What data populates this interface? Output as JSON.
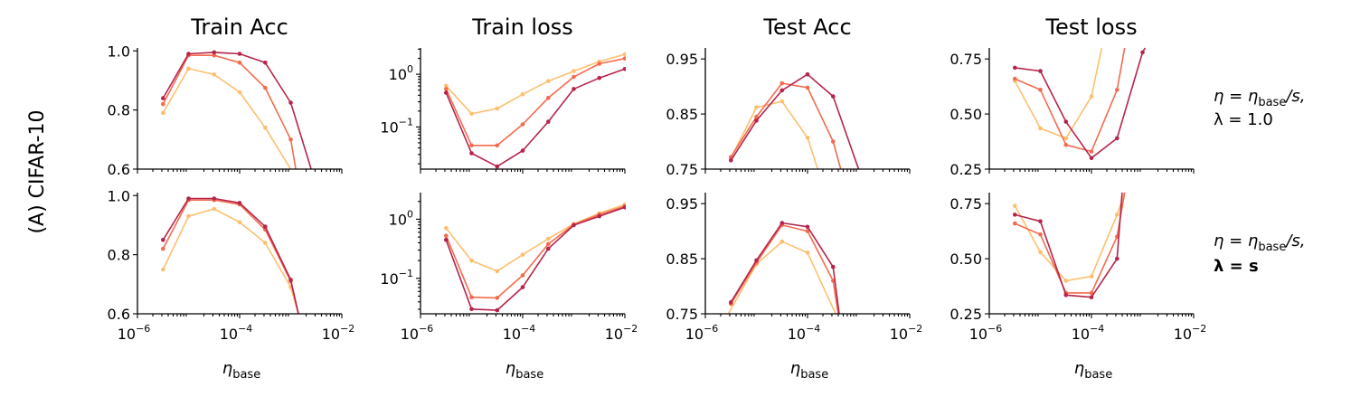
{
  "figure": {
    "row_label": "(A) CIFAR-10",
    "x_label": "η",
    "x_label_sub": "base",
    "row_annotations": [
      {
        "line1_a": "η = η",
        "line1_sub": "base",
        "line1_b": "/s,",
        "line2": "λ = 1.0",
        "line2_bold": false
      },
      {
        "line1_a": "η = η",
        "line1_sub": "base",
        "line1_b": "/s,",
        "line2": "λ = s",
        "line2_bold": true
      }
    ],
    "x_ticks": [
      {
        "base": "10",
        "exp": "−6",
        "value": -6
      },
      {
        "base": "10",
        "exp": "−4",
        "value": -4
      },
      {
        "base": "10",
        "exp": "−2",
        "value": -2
      }
    ]
  },
  "chart_data": [
    {
      "type": "line",
      "title": "Train Acc",
      "row": 0,
      "col": 0,
      "xscale": "log",
      "xlim_log10": [
        -6,
        -2
      ],
      "yscale": "linear",
      "ylim": [
        0.6,
        1.01
      ],
      "y_ticks": [
        {
          "value": 0.6,
          "label": "0.6"
        },
        {
          "value": 0.8,
          "label": "0.8"
        },
        {
          "value": 1.0,
          "label": "1.0"
        }
      ],
      "series": [
        {
          "name": "series-light",
          "color": "#fdbf6f",
          "points": [
            [
              -5.5,
              0.79
            ],
            [
              -5.0,
              0.94
            ],
            [
              -4.5,
              0.92
            ],
            [
              -4.0,
              0.86
            ],
            [
              -3.5,
              0.74
            ],
            [
              -3.0,
              0.6
            ]
          ]
        },
        {
          "name": "series-medium",
          "color": "#f26b4f",
          "points": [
            [
              -5.5,
              0.82
            ],
            [
              -5.0,
              0.985
            ],
            [
              -4.5,
              0.985
            ],
            [
              -4.0,
              0.96
            ],
            [
              -3.5,
              0.875
            ],
            [
              -3.0,
              0.7
            ],
            [
              -2.9,
              0.6
            ]
          ]
        },
        {
          "name": "series-dark",
          "color": "#b5244a",
          "points": [
            [
              -5.5,
              0.84
            ],
            [
              -5.0,
              0.99
            ],
            [
              -4.5,
              0.995
            ],
            [
              -4.0,
              0.99
            ],
            [
              -3.5,
              0.96
            ],
            [
              -3.0,
              0.825
            ],
            [
              -2.6,
              0.6
            ]
          ]
        }
      ]
    },
    {
      "type": "line",
      "title": "Train loss",
      "row": 0,
      "col": 1,
      "xscale": "log",
      "xlim_log10": [
        -6,
        -2
      ],
      "yscale": "log",
      "ylim_log10": [
        -1.8,
        0.5
      ],
      "y_ticks": [
        {
          "value": 0,
          "base": "10",
          "exp": "0"
        },
        {
          "value": -1,
          "base": "10",
          "exp": "−1"
        }
      ],
      "series": [
        {
          "name": "series-light",
          "color": "#fdbf6f",
          "points": [
            [
              -5.5,
              -0.22
            ],
            [
              -5.0,
              -0.75
            ],
            [
              -4.5,
              -0.65
            ],
            [
              -4.0,
              -0.38
            ],
            [
              -3.5,
              -0.13
            ],
            [
              -3.0,
              0.06
            ],
            [
              -2.5,
              0.24
            ],
            [
              -2.0,
              0.38
            ]
          ]
        },
        {
          "name": "series-medium",
          "color": "#f26b4f",
          "points": [
            [
              -5.5,
              -0.28
            ],
            [
              -5.0,
              -1.35
            ],
            [
              -4.5,
              -1.35
            ],
            [
              -4.0,
              -0.95
            ],
            [
              -3.5,
              -0.45
            ],
            [
              -3.0,
              -0.05
            ],
            [
              -2.5,
              0.2
            ],
            [
              -2.0,
              0.3
            ]
          ]
        },
        {
          "name": "series-dark",
          "color": "#b5244a",
          "points": [
            [
              -5.5,
              -0.35
            ],
            [
              -5.0,
              -1.5
            ],
            [
              -4.5,
              -1.75
            ],
            [
              -4.0,
              -1.45
            ],
            [
              -3.5,
              -0.9
            ],
            [
              -3.0,
              -0.28
            ],
            [
              -2.5,
              -0.07
            ],
            [
              -2.0,
              0.1
            ]
          ]
        }
      ]
    },
    {
      "type": "line",
      "title": "Test Acc",
      "row": 0,
      "col": 2,
      "xscale": "log",
      "xlim_log10": [
        -6,
        -2
      ],
      "yscale": "linear",
      "ylim": [
        0.75,
        0.97
      ],
      "y_ticks": [
        {
          "value": 0.75,
          "label": "0.75"
        },
        {
          "value": 0.85,
          "label": "0.85"
        },
        {
          "value": 0.95,
          "label": "0.95"
        }
      ],
      "series": [
        {
          "name": "series-light",
          "color": "#fdbf6f",
          "points": [
            [
              -5.5,
              0.77
            ],
            [
              -5.0,
              0.862
            ],
            [
              -4.5,
              0.873
            ],
            [
              -4.0,
              0.807
            ],
            [
              -3.8,
              0.75
            ]
          ]
        },
        {
          "name": "series-medium",
          "color": "#f26b4f",
          "points": [
            [
              -5.5,
              0.772
            ],
            [
              -5.0,
              0.845
            ],
            [
              -4.5,
              0.906
            ],
            [
              -4.0,
              0.898
            ],
            [
              -3.5,
              0.8
            ],
            [
              -3.35,
              0.75
            ]
          ]
        },
        {
          "name": "series-dark",
          "color": "#b5244a",
          "points": [
            [
              -5.5,
              0.766
            ],
            [
              -5.0,
              0.838
            ],
            [
              -4.5,
              0.893
            ],
            [
              -4.0,
              0.922
            ],
            [
              -3.5,
              0.882
            ],
            [
              -3.0,
              0.75
            ]
          ]
        }
      ]
    },
    {
      "type": "line",
      "title": "Test loss",
      "row": 0,
      "col": 3,
      "xscale": "log",
      "xlim_log10": [
        -6,
        -2
      ],
      "yscale": "linear",
      "ylim": [
        0.25,
        0.8
      ],
      "y_ticks": [
        {
          "value": 0.25,
          "label": "0.25"
        },
        {
          "value": 0.5,
          "label": "0.50"
        },
        {
          "value": 0.75,
          "label": "0.75"
        }
      ],
      "series": [
        {
          "name": "series-light",
          "color": "#fdbf6f",
          "points": [
            [
              -5.5,
              0.65
            ],
            [
              -5.0,
              0.435
            ],
            [
              -4.5,
              0.39
            ],
            [
              -4.0,
              0.58
            ],
            [
              -3.8,
              0.8
            ]
          ]
        },
        {
          "name": "series-medium",
          "color": "#f26b4f",
          "points": [
            [
              -5.5,
              0.66
            ],
            [
              -5.0,
              0.61
            ],
            [
              -4.5,
              0.36
            ],
            [
              -4.0,
              0.33
            ],
            [
              -3.5,
              0.61
            ],
            [
              -3.35,
              0.8
            ]
          ]
        },
        {
          "name": "series-dark",
          "color": "#b5244a",
          "points": [
            [
              -5.5,
              0.71
            ],
            [
              -5.0,
              0.695
            ],
            [
              -4.5,
              0.465
            ],
            [
              -4.0,
              0.3
            ],
            [
              -3.5,
              0.39
            ],
            [
              -3.0,
              0.78
            ],
            [
              -2.95,
              0.8
            ]
          ]
        }
      ]
    },
    {
      "type": "line",
      "title": "",
      "row": 1,
      "col": 0,
      "xscale": "log",
      "xlim_log10": [
        -6,
        -2
      ],
      "yscale": "linear",
      "ylim": [
        0.6,
        1.01
      ],
      "y_ticks": [
        {
          "value": 0.6,
          "label": "0.6"
        },
        {
          "value": 0.8,
          "label": "0.8"
        },
        {
          "value": 1.0,
          "label": "1.0"
        }
      ],
      "series": [
        {
          "name": "series-light",
          "color": "#fdbf6f",
          "points": [
            [
              -5.5,
              0.75
            ],
            [
              -5.0,
              0.93
            ],
            [
              -4.5,
              0.955
            ],
            [
              -4.0,
              0.91
            ],
            [
              -3.5,
              0.84
            ],
            [
              -3.0,
              0.69
            ],
            [
              -2.85,
              0.6
            ]
          ]
        },
        {
          "name": "series-medium",
          "color": "#f26b4f",
          "points": [
            [
              -5.5,
              0.82
            ],
            [
              -5.0,
              0.985
            ],
            [
              -4.5,
              0.985
            ],
            [
              -4.0,
              0.97
            ],
            [
              -3.5,
              0.885
            ],
            [
              -3.0,
              0.71
            ],
            [
              -2.85,
              0.6
            ]
          ]
        },
        {
          "name": "series-dark",
          "color": "#b5244a",
          "points": [
            [
              -5.5,
              0.85
            ],
            [
              -5.0,
              0.99
            ],
            [
              -4.5,
              0.99
            ],
            [
              -4.0,
              0.975
            ],
            [
              -3.5,
              0.895
            ],
            [
              -3.0,
              0.715
            ],
            [
              -2.85,
              0.6
            ]
          ]
        }
      ]
    },
    {
      "type": "line",
      "title": "",
      "row": 1,
      "col": 1,
      "xscale": "log",
      "xlim_log10": [
        -6,
        -2
      ],
      "yscale": "log",
      "ylim_log10": [
        -1.6,
        0.45
      ],
      "y_ticks": [
        {
          "value": 0,
          "base": "10",
          "exp": "0"
        },
        {
          "value": -1,
          "base": "10",
          "exp": "−1"
        }
      ],
      "series": [
        {
          "name": "series-light",
          "color": "#fdbf6f",
          "points": [
            [
              -5.5,
              -0.15
            ],
            [
              -5.0,
              -0.7
            ],
            [
              -4.5,
              -0.88
            ],
            [
              -4.0,
              -0.6
            ],
            [
              -3.5,
              -0.33
            ],
            [
              -3.0,
              -0.08
            ],
            [
              -2.5,
              0.1
            ],
            [
              -2.0,
              0.25
            ]
          ]
        },
        {
          "name": "series-medium",
          "color": "#f26b4f",
          "points": [
            [
              -5.5,
              -0.28
            ],
            [
              -5.0,
              -1.32
            ],
            [
              -4.5,
              -1.33
            ],
            [
              -4.0,
              -0.95
            ],
            [
              -3.5,
              -0.42
            ],
            [
              -3.0,
              -0.09
            ],
            [
              -2.5,
              0.08
            ],
            [
              -2.0,
              0.22
            ]
          ]
        },
        {
          "name": "series-dark",
          "color": "#b5244a",
          "points": [
            [
              -5.5,
              -0.35
            ],
            [
              -5.0,
              -1.52
            ],
            [
              -4.5,
              -1.54
            ],
            [
              -4.0,
              -1.15
            ],
            [
              -3.5,
              -0.5
            ],
            [
              -3.0,
              -0.1
            ],
            [
              -2.5,
              0.05
            ],
            [
              -2.0,
              0.2
            ]
          ]
        }
      ]
    },
    {
      "type": "line",
      "title": "",
      "row": 1,
      "col": 2,
      "xscale": "log",
      "xlim_log10": [
        -6,
        -2
      ],
      "yscale": "linear",
      "ylim": [
        0.75,
        0.97
      ],
      "y_ticks": [
        {
          "value": 0.75,
          "label": "0.75"
        },
        {
          "value": 0.85,
          "label": "0.85"
        },
        {
          "value": 0.95,
          "label": "0.95"
        }
      ],
      "series": [
        {
          "name": "series-light",
          "color": "#fdbf6f",
          "points": [
            [
              -5.55,
              0.75
            ],
            [
              -5.0,
              0.84
            ],
            [
              -4.5,
              0.881
            ],
            [
              -4.0,
              0.861
            ],
            [
              -3.55,
              0.77
            ],
            [
              -3.45,
              0.75
            ]
          ]
        },
        {
          "name": "series-medium",
          "color": "#f26b4f",
          "points": [
            [
              -5.5,
              0.768
            ],
            [
              -5.0,
              0.843
            ],
            [
              -4.5,
              0.911
            ],
            [
              -4.0,
              0.9
            ],
            [
              -3.5,
              0.81
            ],
            [
              -3.4,
              0.75
            ]
          ]
        },
        {
          "name": "series-dark",
          "color": "#b5244a",
          "points": [
            [
              -5.5,
              0.771
            ],
            [
              -5.0,
              0.847
            ],
            [
              -4.5,
              0.915
            ],
            [
              -4.0,
              0.908
            ],
            [
              -3.5,
              0.835
            ],
            [
              -3.38,
              0.75
            ]
          ]
        }
      ]
    },
    {
      "type": "line",
      "title": "",
      "row": 1,
      "col": 3,
      "xscale": "log",
      "xlim_log10": [
        -6,
        -2
      ],
      "yscale": "linear",
      "ylim": [
        0.25,
        0.8
      ],
      "y_ticks": [
        {
          "value": 0.25,
          "label": "0.25"
        },
        {
          "value": 0.5,
          "label": "0.50"
        },
        {
          "value": 0.75,
          "label": "0.75"
        }
      ],
      "series": [
        {
          "name": "series-light",
          "color": "#fdbf6f",
          "points": [
            [
              -5.5,
              0.74
            ],
            [
              -5.0,
              0.53
            ],
            [
              -4.5,
              0.4
            ],
            [
              -4.0,
              0.42
            ],
            [
              -3.5,
              0.7
            ],
            [
              -3.35,
              0.8
            ]
          ]
        },
        {
          "name": "series-medium",
          "color": "#f26b4f",
          "points": [
            [
              -5.5,
              0.66
            ],
            [
              -5.0,
              0.61
            ],
            [
              -4.5,
              0.345
            ],
            [
              -4.0,
              0.345
            ],
            [
              -3.5,
              0.6
            ],
            [
              -3.35,
              0.8
            ]
          ]
        },
        {
          "name": "series-dark",
          "color": "#b5244a",
          "points": [
            [
              -5.5,
              0.7
            ],
            [
              -5.0,
              0.67
            ],
            [
              -4.5,
              0.335
            ],
            [
              -4.0,
              0.325
            ],
            [
              -3.5,
              0.5
            ],
            [
              -3.4,
              0.8
            ]
          ]
        }
      ]
    }
  ]
}
